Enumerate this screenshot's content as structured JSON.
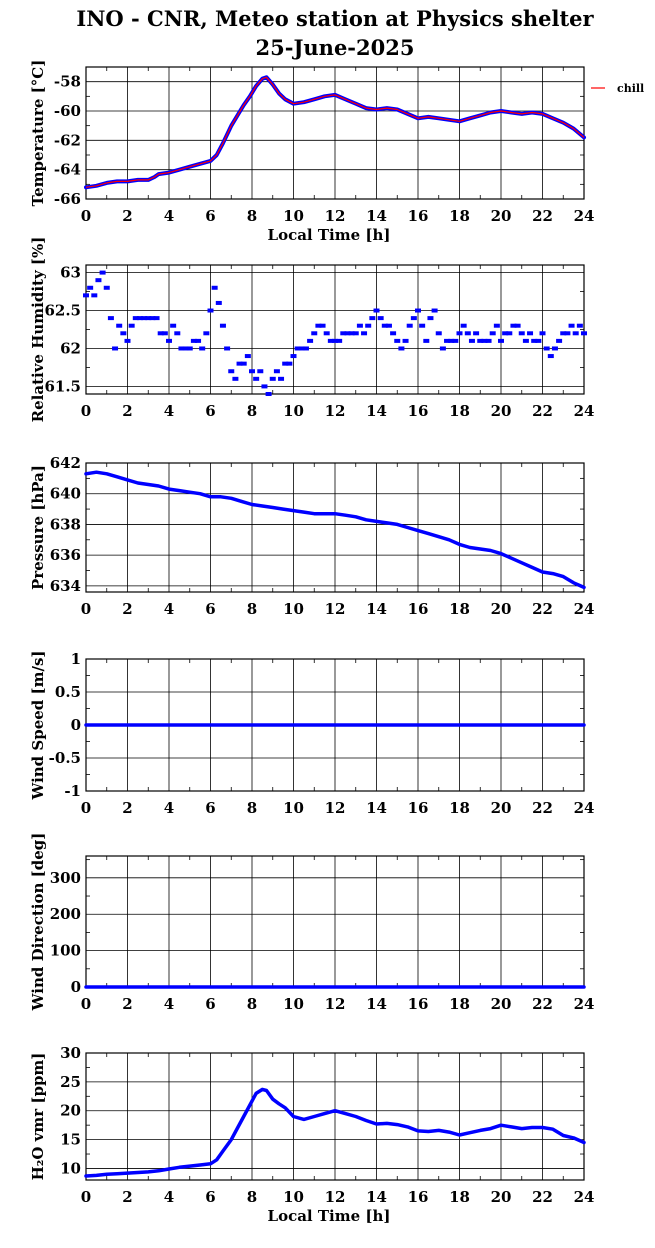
{
  "title": {
    "line1": "INO - CNR, Meteo station at Physics shelter",
    "line2": "25-June-2025"
  },
  "colors": {
    "series_primary": "#0000ff",
    "series_secondary": "#ff0000",
    "grid": "#000000",
    "axis": "#000000"
  },
  "legend": {
    "label": "chill",
    "color": "#ff0000",
    "placement": "right of first panel"
  },
  "chart_data": [
    {
      "id": "temperature",
      "type": "line",
      "ylabel": "Temperature [°C]",
      "xlabel": "Local Time [h]",
      "xlim": [
        0,
        24
      ],
      "ylim": [
        -66,
        -57
      ],
      "xticks": [
        0,
        2,
        4,
        6,
        8,
        10,
        12,
        14,
        16,
        18,
        20,
        22,
        24
      ],
      "yticks": [
        -66,
        -64,
        -62,
        -60,
        -58
      ],
      "ytick_labels": [
        "-66",
        "-64",
        "-62",
        "-60",
        "-58"
      ],
      "grid": true,
      "series": [
        {
          "name": "chill",
          "color": "#ff0000",
          "x": [
            0,
            0.5,
            1,
            1.5,
            2,
            2.5,
            3,
            3.3,
            3.5,
            4,
            4.5,
            5,
            5.5,
            6,
            6.3,
            6.6,
            7,
            7.3,
            7.6,
            7.9,
            8.2,
            8.5,
            8.7,
            9,
            9.3,
            9.6,
            10,
            10.5,
            11,
            11.5,
            12,
            12.5,
            13,
            13.5,
            14,
            14.5,
            15,
            15.5,
            16,
            16.5,
            17,
            17.5,
            18,
            18.5,
            19,
            19.5,
            20,
            20.5,
            21,
            21.5,
            22,
            22.5,
            23,
            23.5,
            24
          ],
          "y": [
            -65.2,
            -65.1,
            -64.9,
            -64.8,
            -64.8,
            -64.7,
            -64.7,
            -64.5,
            -64.3,
            -64.2,
            -64.0,
            -63.8,
            -63.6,
            -63.4,
            -63.0,
            -62.2,
            -61.0,
            -60.3,
            -59.6,
            -59.0,
            -58.3,
            -57.8,
            -57.7,
            -58.2,
            -58.8,
            -59.2,
            -59.5,
            -59.4,
            -59.2,
            -59.0,
            -58.9,
            -59.2,
            -59.5,
            -59.8,
            -59.9,
            -59.8,
            -59.9,
            -60.2,
            -60.5,
            -60.4,
            -60.5,
            -60.6,
            -60.7,
            -60.5,
            -60.3,
            -60.1,
            -60.0,
            -60.1,
            -60.2,
            -60.1,
            -60.2,
            -60.5,
            -60.8,
            -61.2,
            -61.8
          ]
        }
      ]
    },
    {
      "id": "humidity",
      "type": "scatter",
      "ylabel": "Relative Humidity [%]",
      "xlim": [
        0,
        24
      ],
      "ylim": [
        61.4,
        63.1
      ],
      "xticks": [
        0,
        2,
        4,
        6,
        8,
        10,
        12,
        14,
        16,
        18,
        20,
        22,
        24
      ],
      "yticks": [
        61.5,
        62,
        62.5,
        63
      ],
      "ytick_labels": [
        "61.5",
        "62",
        "62.5",
        "63"
      ],
      "grid": true,
      "series": [
        {
          "color": "#0000ff",
          "x": [
            0,
            0.2,
            0.4,
            0.6,
            0.8,
            1.0,
            1.2,
            1.4,
            1.6,
            1.8,
            2.0,
            2.2,
            2.4,
            2.6,
            2.8,
            3.0,
            3.2,
            3.4,
            3.6,
            3.8,
            4.0,
            4.2,
            4.4,
            4.6,
            4.8,
            5.0,
            5.2,
            5.4,
            5.6,
            5.8,
            6.0,
            6.2,
            6.4,
            6.6,
            6.8,
            7.0,
            7.2,
            7.4,
            7.6,
            7.8,
            8.0,
            8.2,
            8.4,
            8.6,
            8.8,
            9.0,
            9.2,
            9.4,
            9.6,
            9.8,
            10.0,
            10.2,
            10.4,
            10.6,
            10.8,
            11.0,
            11.2,
            11.4,
            11.6,
            11.8,
            12.0,
            12.2,
            12.4,
            12.6,
            12.8,
            13.0,
            13.2,
            13.4,
            13.6,
            13.8,
            14.0,
            14.2,
            14.4,
            14.6,
            14.8,
            15.0,
            15.2,
            15.4,
            15.6,
            15.8,
            16.0,
            16.2,
            16.4,
            16.6,
            16.8,
            17.0,
            17.2,
            17.4,
            17.6,
            17.8,
            18.0,
            18.2,
            18.4,
            18.6,
            18.8,
            19.0,
            19.2,
            19.4,
            19.6,
            19.8,
            20.0,
            20.2,
            20.4,
            20.6,
            20.8,
            21.0,
            21.2,
            21.4,
            21.6,
            21.8,
            22.0,
            22.2,
            22.4,
            22.6,
            22.8,
            23.0,
            23.2,
            23.4,
            23.6,
            23.8,
            24.0
          ],
          "y": [
            62.7,
            62.8,
            62.7,
            62.9,
            63.0,
            62.8,
            62.4,
            62.0,
            62.3,
            62.2,
            62.1,
            62.3,
            62.4,
            62.4,
            62.4,
            62.4,
            62.4,
            62.4,
            62.2,
            62.2,
            62.1,
            62.3,
            62.2,
            62.0,
            62.0,
            62.0,
            62.1,
            62.1,
            62.0,
            62.2,
            62.5,
            62.8,
            62.6,
            62.3,
            62.0,
            61.7,
            61.6,
            61.8,
            61.8,
            61.9,
            61.7,
            61.6,
            61.7,
            61.5,
            61.4,
            61.6,
            61.7,
            61.6,
            61.8,
            61.8,
            61.9,
            62.0,
            62.0,
            62.0,
            62.1,
            62.2,
            62.3,
            62.3,
            62.2,
            62.1,
            62.1,
            62.1,
            62.2,
            62.2,
            62.2,
            62.2,
            62.3,
            62.2,
            62.3,
            62.4,
            62.5,
            62.4,
            62.3,
            62.3,
            62.2,
            62.1,
            62.0,
            62.1,
            62.3,
            62.4,
            62.5,
            62.3,
            62.1,
            62.4,
            62.5,
            62.2,
            62.0,
            62.1,
            62.1,
            62.1,
            62.2,
            62.3,
            62.2,
            62.1,
            62.2,
            62.1,
            62.1,
            62.1,
            62.2,
            62.3,
            62.1,
            62.2,
            62.2,
            62.3,
            62.3,
            62.2,
            62.1,
            62.2,
            62.1,
            62.1,
            62.2,
            62.0,
            61.9,
            62.0,
            62.1,
            62.2,
            62.2,
            62.3,
            62.2,
            62.3,
            62.2
          ]
        }
      ]
    },
    {
      "id": "pressure",
      "type": "line",
      "ylabel": "Pressure [hPa]",
      "xlim": [
        0,
        24
      ],
      "ylim": [
        633.6,
        642
      ],
      "xticks": [
        0,
        2,
        4,
        6,
        8,
        10,
        12,
        14,
        16,
        18,
        20,
        22,
        24
      ],
      "yticks": [
        634,
        636,
        638,
        640,
        642
      ],
      "ytick_labels": [
        "634",
        "636",
        "638",
        "640",
        "642"
      ],
      "grid": true,
      "series": [
        {
          "color": "#0000ff",
          "x": [
            0,
            0.5,
            1,
            1.5,
            2,
            2.5,
            3,
            3.5,
            4,
            4.5,
            5,
            5.5,
            6,
            6.5,
            7,
            7.5,
            8,
            8.5,
            9,
            9.5,
            10,
            10.5,
            11,
            11.5,
            12,
            12.5,
            13,
            13.5,
            14,
            14.5,
            15,
            15.5,
            16,
            16.5,
            17,
            17.5,
            18,
            18.5,
            19,
            19.5,
            20,
            20.5,
            21,
            21.5,
            22,
            22.5,
            23,
            23.5,
            24
          ],
          "y": [
            641.3,
            641.4,
            641.3,
            641.1,
            640.9,
            640.7,
            640.6,
            640.5,
            640.3,
            640.2,
            640.1,
            640.0,
            639.8,
            639.8,
            639.7,
            639.5,
            639.3,
            639.2,
            639.1,
            639.0,
            638.9,
            638.8,
            638.7,
            638.7,
            638.7,
            638.6,
            638.5,
            638.3,
            638.2,
            638.1,
            638.0,
            637.8,
            637.6,
            637.4,
            637.2,
            637.0,
            636.7,
            636.5,
            636.4,
            636.3,
            636.1,
            635.8,
            635.5,
            635.2,
            634.9,
            634.8,
            634.6,
            634.2,
            633.9
          ]
        }
      ]
    },
    {
      "id": "wind_speed",
      "type": "line",
      "ylabel": "Wind Speed [m/s]",
      "xlim": [
        0,
        24
      ],
      "ylim": [
        -1,
        1
      ],
      "xticks": [
        0,
        2,
        4,
        6,
        8,
        10,
        12,
        14,
        16,
        18,
        20,
        22,
        24
      ],
      "yticks": [
        -1,
        -0.5,
        0,
        0.5,
        1
      ],
      "ytick_labels": [
        "-1",
        "-0.5",
        "0",
        "0.5",
        "1"
      ],
      "grid": true,
      "series": [
        {
          "color": "#0000ff",
          "x": [
            0,
            24
          ],
          "y": [
            0,
            0
          ]
        }
      ]
    },
    {
      "id": "wind_direction",
      "type": "line",
      "ylabel": "Wind Direction [deg]",
      "xlim": [
        0,
        24
      ],
      "ylim": [
        0,
        360
      ],
      "xticks": [
        0,
        2,
        4,
        6,
        8,
        10,
        12,
        14,
        16,
        18,
        20,
        22,
        24
      ],
      "yticks": [
        0,
        100,
        200,
        300
      ],
      "ytick_labels": [
        "0",
        "100",
        "200",
        "300"
      ],
      "grid": true,
      "series": [
        {
          "color": "#0000ff",
          "x": [
            0,
            24
          ],
          "y": [
            0,
            0
          ]
        }
      ]
    },
    {
      "id": "h2o_vmr",
      "type": "line",
      "ylabel": "H₂O vmr [ppm]",
      "xlabel": "Local Time [h]",
      "xlim": [
        0,
        24
      ],
      "ylim": [
        8,
        30
      ],
      "xticks": [
        0,
        2,
        4,
        6,
        8,
        10,
        12,
        14,
        16,
        18,
        20,
        22,
        24
      ],
      "yticks": [
        10,
        15,
        20,
        25,
        30
      ],
      "ytick_labels": [
        "10",
        "15",
        "20",
        "25",
        "30"
      ],
      "grid": true,
      "series": [
        {
          "color": "#0000ff",
          "x": [
            0,
            0.5,
            1,
            1.5,
            2,
            2.5,
            3,
            3.5,
            4,
            4.5,
            5,
            5.5,
            6,
            6.3,
            6.6,
            7,
            7.3,
            7.6,
            7.9,
            8.2,
            8.5,
            8.7,
            9,
            9.3,
            9.6,
            10,
            10.5,
            11,
            11.5,
            12,
            12.5,
            13,
            13.5,
            14,
            14.5,
            15,
            15.5,
            16,
            16.5,
            17,
            17.5,
            18,
            18.5,
            19,
            19.5,
            20,
            20.5,
            21,
            21.5,
            22,
            22.5,
            23,
            23.5,
            24
          ],
          "y": [
            8.7,
            8.8,
            9.0,
            9.1,
            9.2,
            9.3,
            9.4,
            9.6,
            9.9,
            10.2,
            10.4,
            10.6,
            10.8,
            11.5,
            13.0,
            15.0,
            17.0,
            19.0,
            21.0,
            23.0,
            23.7,
            23.5,
            22.0,
            21.2,
            20.5,
            19.0,
            18.5,
            19.0,
            19.5,
            20.0,
            19.5,
            19.0,
            18.3,
            17.7,
            17.8,
            17.6,
            17.2,
            16.5,
            16.4,
            16.6,
            16.3,
            15.8,
            16.2,
            16.6,
            16.9,
            17.5,
            17.2,
            16.9,
            17.1,
            17.1,
            16.8,
            15.7,
            15.3,
            14.5
          ]
        }
      ]
    }
  ]
}
